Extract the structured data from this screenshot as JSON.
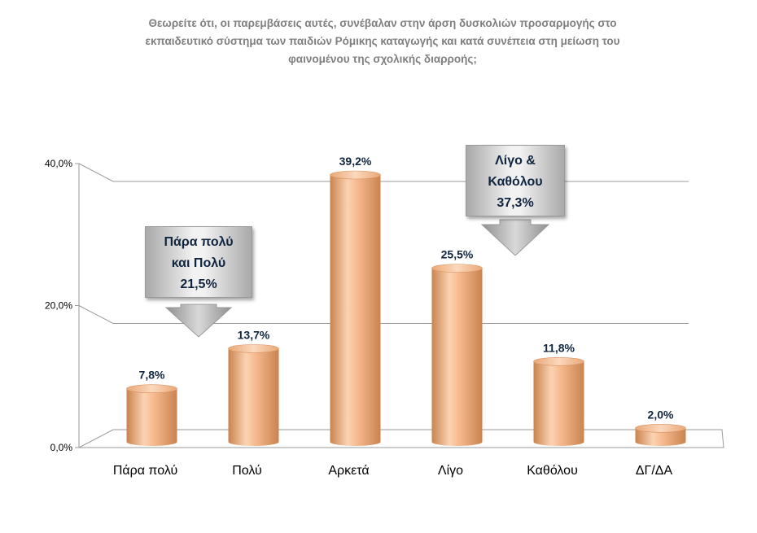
{
  "title_lines": [
    "Θεωρείτε ότι, οι παρεμβάσεις αυτές, συνέβαλαν στην άρση  δυσκολιών προσαρμογής στο",
    "εκπαιδευτικό σύστημα των παιδιών Ρόμικης καταγωγής και κατά συνέπεια στη μείωση του",
    "φαινομένου της σχολικής διαρροής;"
  ],
  "chart_data": {
    "type": "bar",
    "title": "Θεωρείτε ότι, οι παρεμβάσεις αυτές, συνέβαλαν στην άρση  δυσκολιών προσαρμογής στο εκπαιδευτικό σύστημα των παιδιών Ρόμικης καταγωγής και κατά συνέπεια στη μείωση του φαινομένου της σχολικής διαρροής;",
    "categories": [
      "Πάρα πολύ",
      "Πολύ",
      "Αρκετά",
      "Λίγο",
      "Καθόλου",
      "ΔΓ/ΔΑ"
    ],
    "values": [
      7.8,
      13.7,
      39.2,
      25.5,
      11.8,
      2.0
    ],
    "value_labels": [
      "7,8%",
      "13,7%",
      "39,2%",
      "25,5%",
      "11,8%",
      "2,0%"
    ],
    "yticks": [
      0,
      20,
      40
    ],
    "ytick_labels": [
      "0,0%",
      "20,0%",
      "40,0%"
    ],
    "ylim": [
      0,
      40
    ],
    "grid": true,
    "legend": "none",
    "bar_color": "#f4b183",
    "annotations": [
      {
        "lines": [
          "Πάρα πολύ",
          "και Πολύ",
          "21,5%"
        ]
      },
      {
        "lines": [
          "Λίγο &",
          "Καθόλου",
          "37,3%"
        ]
      }
    ]
  }
}
